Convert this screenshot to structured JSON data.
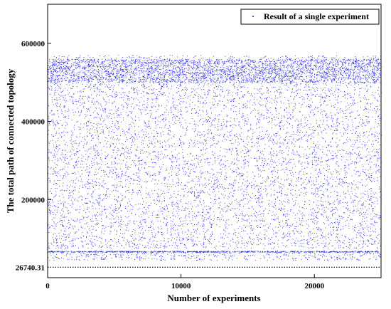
{
  "chart_data": {
    "type": "scatter",
    "xlabel": "Number of experiments",
    "ylabel": "The total path of connected topology",
    "xlim": [
      0,
      25000
    ],
    "ylim": [
      0,
      700000
    ],
    "x_ticks": [
      0,
      10000,
      20000
    ],
    "x_tick_labels": [
      "0",
      "10000",
      "20000"
    ],
    "y_ticks": [
      200000,
      400000,
      600000
    ],
    "y_tick_labels": [
      "200000",
      "400000",
      "600000"
    ],
    "grid": false,
    "legend_position": "top-right",
    "series": [
      {
        "name": "Result of a single experiment",
        "color": "#1a1aff",
        "marker": "dot",
        "point_count": 25000,
        "x_range": [
          0,
          25000
        ],
        "y_range": [
          45000,
          570000
        ],
        "dense_band_y": [
          500000,
          560000
        ],
        "flat_band_y": 67000
      }
    ],
    "reference_line": {
      "value": 26740.31,
      "label": "26740.31",
      "style": "dotted"
    }
  }
}
